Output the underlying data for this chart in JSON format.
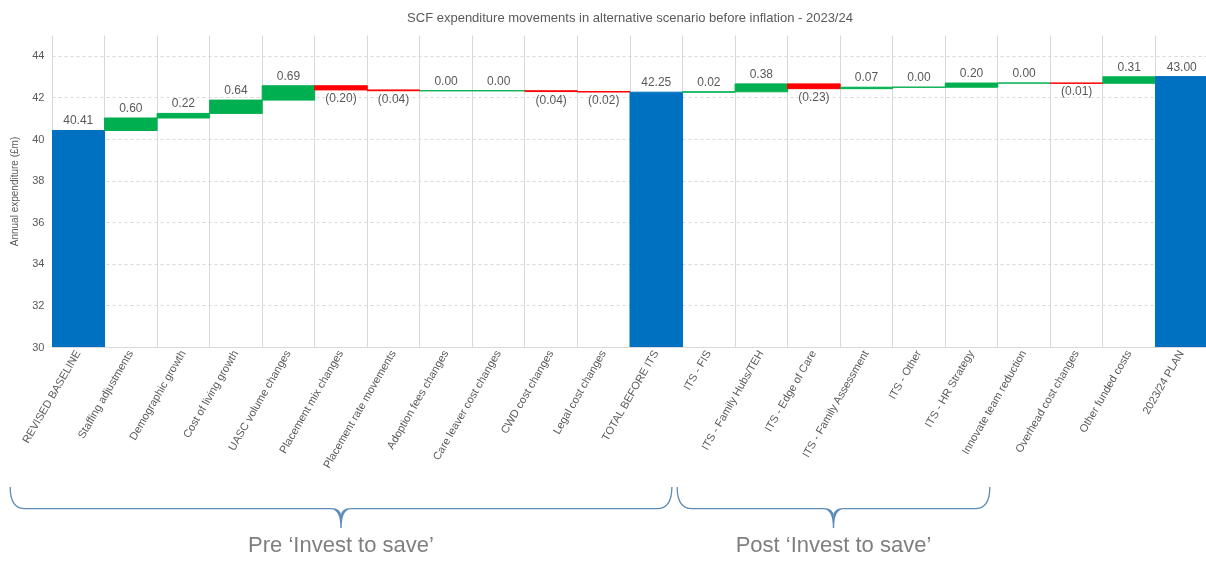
{
  "chart_data": {
    "type": "bar",
    "title": "SCF expenditure movements in alternative scenario before inflation - 2023/24",
    "ylabel": "Annual expenditure (£m)",
    "categories": [
      "REVISED BASELINE",
      "Staffing adjustments",
      "Demographic growth",
      "Cost of living growth",
      "UASC volume changes",
      "Placement mix changes",
      "Placement rate movements",
      "Adoption fees changes",
      "Care leaver cost changes",
      "CWD cost changes",
      "Legal cost changes",
      "TOTAL BEFORE ITS",
      "ITS - FIS",
      "ITS - Family Hubs/TEH",
      "ITS - Edge of Care",
      "ITS - Family Assessment",
      "ITS - Other",
      "ITS - HR Strategy",
      "Innovate team reduction",
      "Overhead cost changes",
      "Other funded costs",
      "2023/24 PLAN"
    ],
    "values": [
      40.41,
      0.6,
      0.22,
      0.64,
      0.69,
      -0.2,
      -0.04,
      0.0,
      0.0,
      -0.04,
      -0.02,
      42.25,
      0.02,
      0.38,
      -0.23,
      0.07,
      0.0,
      0.2,
      0.0,
      -0.01,
      0.31,
      43.0
    ],
    "base": [
      null,
      40.41,
      41.01,
      41.23,
      41.87,
      42.56,
      42.36,
      42.32,
      42.32,
      42.32,
      42.28,
      null,
      42.25,
      42.27,
      42.65,
      42.42,
      42.49,
      42.49,
      42.69,
      42.69,
      42.68,
      null
    ],
    "colors": [
      "#0070c0",
      "#00b050",
      "#00b050",
      "#00b050",
      "#00b050",
      "#ff0000",
      "#ff0000",
      "#00b050",
      "#00b050",
      "#ff0000",
      "#ff0000",
      "#0070c0",
      "#00b050",
      "#00b050",
      "#ff0000",
      "#00b050",
      "#00b050",
      "#00b050",
      "#00b050",
      "#ff0000",
      "#00b050",
      "#0070c0"
    ],
    "value_labels": [
      "40.41",
      "0.60",
      "0.22",
      "0.64",
      "0.69",
      "(0.20)",
      "(0.04)",
      "0.00",
      "0.00",
      "(0.04)",
      "(0.02)",
      "42.25",
      "0.02",
      "0.38",
      "(0.23)",
      "0.07",
      "0.00",
      "0.20",
      "0.00",
      "(0.01)",
      "0.31",
      "43.00"
    ],
    "ylim": [
      30,
      45
    ],
    "yticks": [
      30,
      32,
      34,
      36,
      38,
      40,
      42,
      44
    ],
    "grid": true,
    "annotations": [
      "Pre ‘Invest to save’",
      "Post ‘Invest to save’"
    ]
  }
}
